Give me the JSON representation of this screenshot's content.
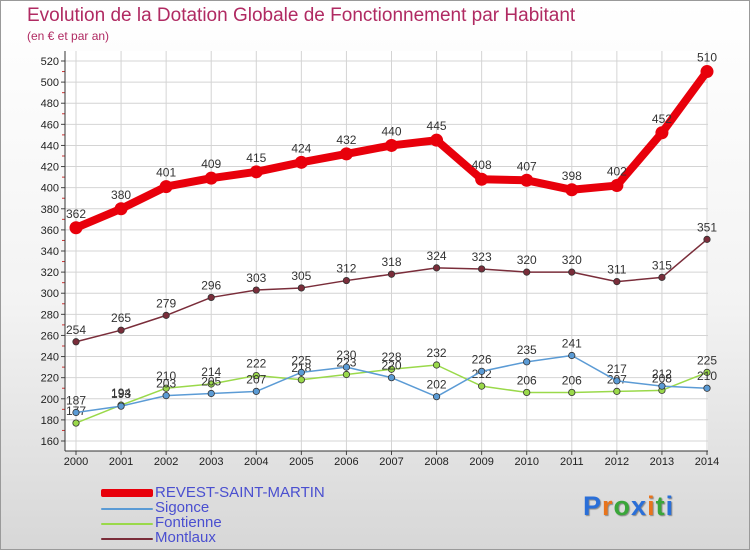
{
  "title": "Evolution de la Dotation Globale de Fonctionnement par Habitant",
  "subtitle": "(en € et par an)",
  "logo": {
    "text": "Proxiti",
    "colors": [
      "#2a6fd8",
      "#e8741c",
      "#3aa63a",
      "#2a6fd8",
      "#e8741c",
      "#3aa63a",
      "#2a6fd8"
    ]
  },
  "chart_data": {
    "type": "line",
    "x": [
      "2000",
      "2001",
      "2002",
      "2003",
      "2004",
      "2005",
      "2006",
      "2007",
      "2008",
      "2009",
      "2010",
      "2011",
      "2012",
      "2013",
      "2014"
    ],
    "ylim": [
      160,
      520
    ],
    "yticks": [
      "160",
      "180",
      "200",
      "220",
      "240",
      "260",
      "280",
      "300",
      "320",
      "340",
      "360",
      "380",
      "400",
      "420",
      "440",
      "460",
      "480",
      "500",
      "520"
    ],
    "grid": true,
    "legend_position": "bottom-left",
    "series": [
      {
        "name": "REVEST-SAINT-MARTIN",
        "color": "#e8000b",
        "values": [
          362,
          380,
          401,
          409,
          415,
          424,
          432,
          440,
          445,
          408,
          407,
          398,
          402,
          452,
          510
        ],
        "labels": [
          "362",
          "380",
          "401",
          "409",
          "415",
          "424",
          "432",
          "440",
          "445",
          "408",
          "407",
          "398",
          "402",
          "452",
          "510"
        ]
      },
      {
        "name": "Sigonce",
        "color": "#5b9bd5",
        "values": [
          187,
          193,
          203,
          205,
          207,
          225,
          230,
          220,
          202,
          226,
          235,
          241,
          217,
          212,
          210
        ],
        "labels": [
          "187",
          "193",
          "203",
          "205",
          "207",
          "225",
          "230",
          "220",
          "202",
          "226",
          "235",
          "241",
          "217",
          "212",
          "210"
        ]
      },
      {
        "name": "Fontienne",
        "color": "#9ad94a",
        "values": [
          177,
          194,
          210,
          214,
          222,
          218,
          223,
          228,
          232,
          212,
          206,
          206,
          207,
          208,
          225
        ],
        "labels": [
          "177",
          "194",
          "210",
          "214",
          "222",
          "218",
          "223",
          "228",
          "232",
          "212",
          "206",
          "206",
          "207",
          "208",
          "225"
        ]
      },
      {
        "name": "Montlaux",
        "color": "#7a2d3a",
        "values": [
          254,
          265,
          279,
          296,
          303,
          305,
          312,
          318,
          324,
          323,
          320,
          320,
          311,
          315,
          351
        ],
        "labels": [
          "254",
          "265",
          "279",
          "296",
          "303",
          "305",
          "312",
          "318",
          "324",
          "323",
          "320",
          "320",
          "311",
          "315",
          "351"
        ]
      }
    ]
  }
}
